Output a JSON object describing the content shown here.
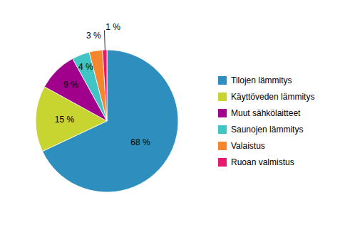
{
  "chart_data": {
    "type": "pie",
    "categories": [
      "Tilojen lämmitys",
      "Käyttöveden lämmitys",
      "Muut sähkölaitteet",
      "Saunojen lämmitys",
      "Valaistus",
      "Ruoan valmistus"
    ],
    "values": [
      68,
      15,
      9,
      4,
      3,
      1
    ],
    "value_labels": [
      "68 %",
      "15 %",
      "9 %",
      "4 %",
      "3 %",
      "1 %"
    ],
    "colors": [
      "#2e8fbf",
      "#c8d430",
      "#a0008c",
      "#40c4c4",
      "#f5862e",
      "#e8186c"
    ],
    "data_labels": true,
    "legend": "right"
  }
}
